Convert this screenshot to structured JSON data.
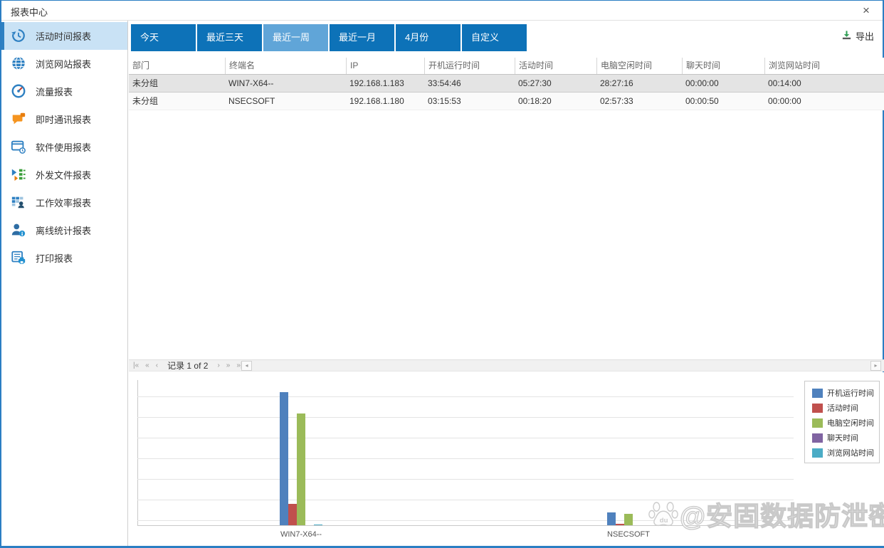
{
  "window": {
    "title": "报表中心",
    "close_glyph": "×"
  },
  "sidebar": {
    "items": [
      {
        "label": "活动时间报表",
        "icon": "history-clock-icon",
        "selected": true
      },
      {
        "label": "浏览网站报表",
        "icon": "globe-icon",
        "selected": false
      },
      {
        "label": "流量报表",
        "icon": "gauge-icon",
        "selected": false
      },
      {
        "label": "即时通讯报表",
        "icon": "chat-icon",
        "selected": false
      },
      {
        "label": "软件使用报表",
        "icon": "software-window-icon",
        "selected": false
      },
      {
        "label": "外发文件报表",
        "icon": "outgoing-file-icon",
        "selected": false
      },
      {
        "label": "工作效率报表",
        "icon": "efficiency-grid-icon",
        "selected": false
      },
      {
        "label": "离线统计报表",
        "icon": "offline-user-icon",
        "selected": false
      },
      {
        "label": "打印报表",
        "icon": "print-icon",
        "selected": false
      }
    ]
  },
  "tabs": [
    {
      "label": "今天",
      "selected": false
    },
    {
      "label": "最近三天",
      "selected": false
    },
    {
      "label": "最近一周",
      "selected": true
    },
    {
      "label": "最近一月",
      "selected": false
    },
    {
      "label": "4月份",
      "selected": false
    },
    {
      "label": "自定义",
      "selected": false
    }
  ],
  "toolbar": {
    "export_label": "导出",
    "export_icon": "download-icon",
    "export_color": "#2f9e54"
  },
  "table": {
    "columns": [
      "部门",
      "终端名",
      "IP",
      "开机运行时间",
      "活动时间",
      "电脑空闲时间",
      "聊天时间",
      "浏览网站时间"
    ],
    "rows": [
      [
        "未分组",
        "WIN7-X64--",
        "192.168.1.183",
        "33:54:46",
        "05:27:30",
        "28:27:16",
        "00:00:00",
        "00:14:00"
      ],
      [
        "未分组",
        "NSECSOFT",
        "192.168.1.180",
        "03:15:53",
        "00:18:20",
        "02:57:33",
        "00:00:50",
        "00:00:00"
      ]
    ],
    "selected_row_index": 0
  },
  "pagination": {
    "record_text": "记录 1 of 2",
    "icons": {
      "first": "|«",
      "prev_page": "«",
      "prev": "‹",
      "next": "›",
      "next_page": "»",
      "last": "»|"
    },
    "scroll_left_glyph": "◂",
    "scroll_right_glyph": "▸"
  },
  "chart_data": {
    "type": "bar",
    "title": "",
    "categories": [
      "WIN7-X64--",
      "NSECSOFT"
    ],
    "series": [
      {
        "name": "开机运行时间",
        "color": "#4F81BD",
        "values_hours": [
          33.91,
          3.26
        ],
        "values_hms": [
          "33:54:46",
          "03:15:53"
        ]
      },
      {
        "name": "活动时间",
        "color": "#C0504D",
        "values_hours": [
          5.46,
          0.31
        ],
        "values_hms": [
          "05:27:30",
          "00:18:20"
        ]
      },
      {
        "name": "电脑空闲时间",
        "color": "#9BBB59",
        "values_hours": [
          28.45,
          2.96
        ],
        "values_hms": [
          "28:27:16",
          "02:57:33"
        ]
      },
      {
        "name": "聊天时间",
        "color": "#8064A2",
        "values_hours": [
          0,
          0.01
        ],
        "values_hms": [
          "00:00:00",
          "00:00:50"
        ]
      },
      {
        "name": "浏览网站时间",
        "color": "#4BACC6",
        "values_hours": [
          0.23,
          0
        ],
        "values_hms": [
          "00:14:00",
          "00:00:00"
        ]
      }
    ],
    "ylim_hours": [
      0,
      37
    ],
    "grid": true,
    "legend_position": "top-right"
  },
  "watermark": {
    "text": "@安固数据防泄密",
    "icon": "baidu-paw-icon"
  },
  "colors": {
    "tab_blue": "#0d72b8",
    "tab_selected": "#60a5d8",
    "sidebar_selected_bg": "#c9e2f5",
    "accent": "#2e80c2",
    "window_border": "#2b7ec3"
  }
}
